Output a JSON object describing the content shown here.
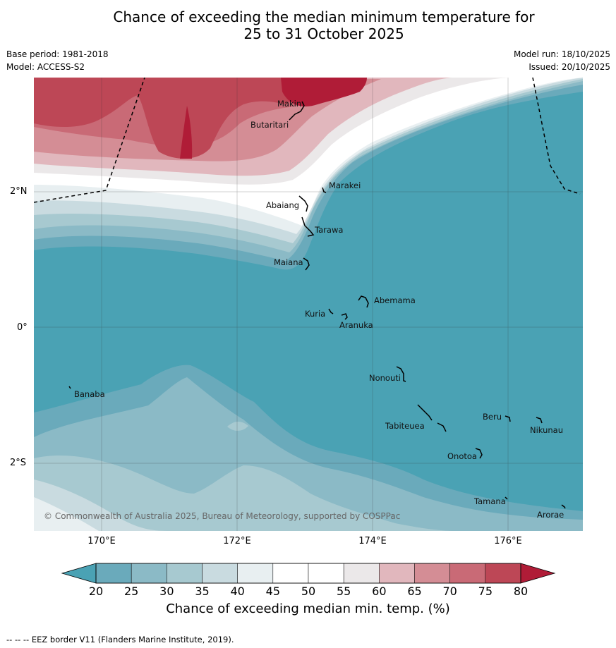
{
  "title_line1": "Chance of exceeding the median minimum temperature for",
  "title_line2": "25 to 31 October 2025",
  "base_period": "Base period: 1981-2018",
  "model": "Model: ACCESS-S2",
  "model_run": "Model run: 18/10/2025",
  "issued": "Issued: 20/10/2025",
  "lat_labels": [
    "2°N",
    "0°",
    "2°S"
  ],
  "lon_labels": [
    "170°E",
    "172°E",
    "174°E",
    "176°E"
  ],
  "places": {
    "makin": "Makin",
    "butaritari": "Butaritari",
    "marakei": "Marakei",
    "abaiang": "Abaiang",
    "tarawa": "Tarawa",
    "maiana": "Maiana",
    "abemama": "Abemama",
    "kuria": "Kuria",
    "aranuka": "Aranuka",
    "nonouti": "Nonouti",
    "banaba": "Banaba",
    "beru": "Beru",
    "nikunau": "Nikunau",
    "tabiteuea": "Tabiteuea",
    "onotoa": "Onotoa",
    "tamana": "Tamana",
    "arorae": "Arorae"
  },
  "copyright": "© Commonwealth of Australia 2025, Bureau of Meteorology, supported by COSPPac",
  "colorbar": {
    "ticks": [
      "20",
      "25",
      "30",
      "35",
      "40",
      "45",
      "50",
      "55",
      "60",
      "65",
      "70",
      "75",
      "80"
    ],
    "colors": [
      "#6aaabb",
      "#8bbac6",
      "#a7c9d0",
      "#c9dbe0",
      "#e8eff1",
      "#ffffff",
      "#ffffff",
      "#ebe8e9",
      "#e1b7bd",
      "#d48d95",
      "#c96a76",
      "#bd4756"
    ],
    "under_color": "#4aa2b4",
    "over_color": "#b01c37",
    "label": "Chance of exceeding median min. temp. (%)"
  },
  "footer": "-- -- -- EEZ border V11 (Flanders Marine Institute, 2019)."
}
